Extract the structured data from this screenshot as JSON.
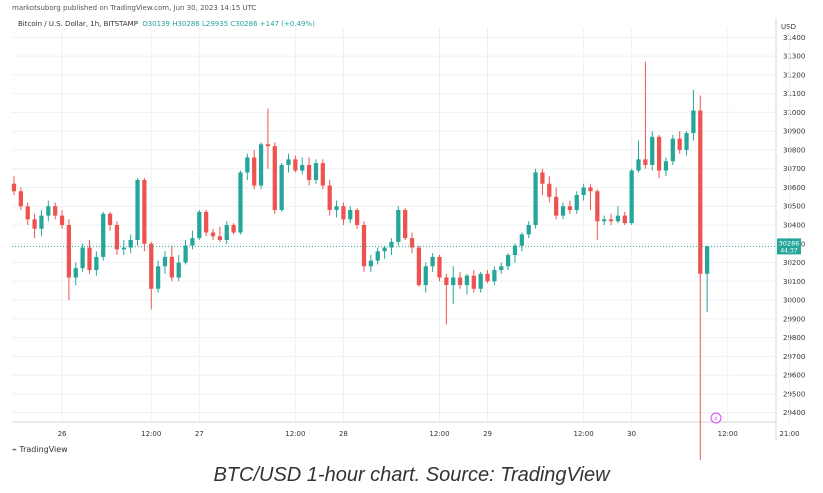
{
  "header": {
    "published": "markotsuborg published on TradingView.com, Jun 30, 2023 14:15 UTC",
    "symbol": "Bitcoin / U.S. Dollar, 1h, BITSTAMP",
    "open": "O30139",
    "high": "H30286",
    "low": "L29935",
    "close": "C30286",
    "change": "+147 (+0.49%)"
  },
  "currency_label": "USD",
  "brand": "TradingView",
  "caption": "BTC/USD 1-hour chart. Source: TradingView",
  "colors": {
    "up": "#26a69a",
    "down": "#ef5350",
    "grid": "#eef0f3",
    "axis_text": "#333333",
    "price_line": "#26a69a"
  },
  "chart_data": {
    "type": "candlestick",
    "title": "Bitcoin / U.S. Dollar, 1h, BITSTAMP",
    "y_unit": "USD",
    "ylim": [
      29350,
      31450
    ],
    "yticks": [
      29400,
      29500,
      29600,
      29700,
      29800,
      29900,
      30000,
      30100,
      30200,
      30300,
      30400,
      30500,
      30600,
      30700,
      30800,
      30900,
      31000,
      31100,
      31200,
      31300,
      31400
    ],
    "x_tick_labels": [
      "26",
      "12:00",
      "27",
      "12:00",
      "28",
      "12:00",
      "29",
      "12:00",
      "30",
      "12:00",
      "21:00"
    ],
    "last_price": "30286",
    "countdown": "44:37",
    "candles": [
      {
        "o": 30620,
        "h": 30660,
        "l": 30560,
        "c": 30580
      },
      {
        "o": 30580,
        "h": 30600,
        "l": 30480,
        "c": 30500
      },
      {
        "o": 30500,
        "h": 30520,
        "l": 30400,
        "c": 30430
      },
      {
        "o": 30430,
        "h": 30460,
        "l": 30330,
        "c": 30380
      },
      {
        "o": 30380,
        "h": 30480,
        "l": 30340,
        "c": 30450
      },
      {
        "o": 30450,
        "h": 30530,
        "l": 30420,
        "c": 30500
      },
      {
        "o": 30500,
        "h": 30520,
        "l": 30430,
        "c": 30450
      },
      {
        "o": 30450,
        "h": 30480,
        "l": 30380,
        "c": 30400
      },
      {
        "o": 30400,
        "h": 30430,
        "l": 30000,
        "c": 30120
      },
      {
        "o": 30120,
        "h": 30200,
        "l": 30080,
        "c": 30170
      },
      {
        "o": 30170,
        "h": 30300,
        "l": 30150,
        "c": 30280
      },
      {
        "o": 30280,
        "h": 30320,
        "l": 30140,
        "c": 30160
      },
      {
        "o": 30160,
        "h": 30260,
        "l": 30130,
        "c": 30230
      },
      {
        "o": 30230,
        "h": 30470,
        "l": 30210,
        "c": 30460
      },
      {
        "o": 30460,
        "h": 30470,
        "l": 30370,
        "c": 30400
      },
      {
        "o": 30400,
        "h": 30420,
        "l": 30240,
        "c": 30270
      },
      {
        "o": 30270,
        "h": 30320,
        "l": 30240,
        "c": 30280
      },
      {
        "o": 30280,
        "h": 30350,
        "l": 30250,
        "c": 30320
      },
      {
        "o": 30320,
        "h": 30650,
        "l": 30290,
        "c": 30640
      },
      {
        "o": 30640,
        "h": 30650,
        "l": 30260,
        "c": 30300
      },
      {
        "o": 30300,
        "h": 30310,
        "l": 29950,
        "c": 30060
      },
      {
        "o": 30060,
        "h": 30210,
        "l": 30040,
        "c": 30180
      },
      {
        "o": 30180,
        "h": 30260,
        "l": 30140,
        "c": 30230
      },
      {
        "o": 30230,
        "h": 30290,
        "l": 30100,
        "c": 30120
      },
      {
        "o": 30120,
        "h": 30240,
        "l": 30100,
        "c": 30200
      },
      {
        "o": 30200,
        "h": 30320,
        "l": 30190,
        "c": 30290
      },
      {
        "o": 30290,
        "h": 30370,
        "l": 30270,
        "c": 30330
      },
      {
        "o": 30330,
        "h": 30480,
        "l": 30320,
        "c": 30470
      },
      {
        "o": 30470,
        "h": 30480,
        "l": 30340,
        "c": 30360
      },
      {
        "o": 30360,
        "h": 30380,
        "l": 30320,
        "c": 30340
      },
      {
        "o": 30340,
        "h": 30390,
        "l": 30310,
        "c": 30320
      },
      {
        "o": 30320,
        "h": 30420,
        "l": 30300,
        "c": 30400
      },
      {
        "o": 30400,
        "h": 30410,
        "l": 30350,
        "c": 30360
      },
      {
        "o": 30360,
        "h": 30690,
        "l": 30350,
        "c": 30680
      },
      {
        "o": 30680,
        "h": 30780,
        "l": 30640,
        "c": 30760
      },
      {
        "o": 30760,
        "h": 30800,
        "l": 30590,
        "c": 30610
      },
      {
        "o": 30610,
        "h": 30840,
        "l": 30590,
        "c": 30830
      },
      {
        "o": 30830,
        "h": 31020,
        "l": 30700,
        "c": 30820
      },
      {
        "o": 30820,
        "h": 30840,
        "l": 30460,
        "c": 30480
      },
      {
        "o": 30480,
        "h": 30730,
        "l": 30470,
        "c": 30720
      },
      {
        "o": 30720,
        "h": 30780,
        "l": 30680,
        "c": 30750
      },
      {
        "o": 30750,
        "h": 30770,
        "l": 30680,
        "c": 30690
      },
      {
        "o": 30690,
        "h": 30760,
        "l": 30670,
        "c": 30720
      },
      {
        "o": 30720,
        "h": 30760,
        "l": 30610,
        "c": 30640
      },
      {
        "o": 30640,
        "h": 30750,
        "l": 30620,
        "c": 30730
      },
      {
        "o": 30730,
        "h": 30750,
        "l": 30590,
        "c": 30610
      },
      {
        "o": 30610,
        "h": 30640,
        "l": 30450,
        "c": 30480
      },
      {
        "o": 30480,
        "h": 30530,
        "l": 30440,
        "c": 30500
      },
      {
        "o": 30500,
        "h": 30520,
        "l": 30400,
        "c": 30430
      },
      {
        "o": 30430,
        "h": 30500,
        "l": 30410,
        "c": 30480
      },
      {
        "o": 30480,
        "h": 30490,
        "l": 30380,
        "c": 30400
      },
      {
        "o": 30400,
        "h": 30420,
        "l": 30150,
        "c": 30180
      },
      {
        "o": 30180,
        "h": 30240,
        "l": 30150,
        "c": 30210
      },
      {
        "o": 30210,
        "h": 30280,
        "l": 30190,
        "c": 30260
      },
      {
        "o": 30260,
        "h": 30290,
        "l": 30220,
        "c": 30280
      },
      {
        "o": 30280,
        "h": 30330,
        "l": 30240,
        "c": 30310
      },
      {
        "o": 30310,
        "h": 30500,
        "l": 30290,
        "c": 30480
      },
      {
        "o": 30480,
        "h": 30490,
        "l": 30320,
        "c": 30330
      },
      {
        "o": 30330,
        "h": 30360,
        "l": 30250,
        "c": 30280
      },
      {
        "o": 30280,
        "h": 30290,
        "l": 30070,
        "c": 30080
      },
      {
        "o": 30080,
        "h": 30200,
        "l": 30040,
        "c": 30180
      },
      {
        "o": 30180,
        "h": 30250,
        "l": 30150,
        "c": 30230
      },
      {
        "o": 30230,
        "h": 30240,
        "l": 30100,
        "c": 30120
      },
      {
        "o": 30120,
        "h": 30140,
        "l": 29870,
        "c": 30080
      },
      {
        "o": 30080,
        "h": 30180,
        "l": 29980,
        "c": 30120
      },
      {
        "o": 30120,
        "h": 30150,
        "l": 30060,
        "c": 30080
      },
      {
        "o": 30080,
        "h": 30140,
        "l": 30030,
        "c": 30130
      },
      {
        "o": 30130,
        "h": 30160,
        "l": 30040,
        "c": 30060
      },
      {
        "o": 30060,
        "h": 30150,
        "l": 30040,
        "c": 30140
      },
      {
        "o": 30140,
        "h": 30160,
        "l": 30090,
        "c": 30100
      },
      {
        "o": 30100,
        "h": 30180,
        "l": 30080,
        "c": 30160
      },
      {
        "o": 30160,
        "h": 30200,
        "l": 30140,
        "c": 30180
      },
      {
        "o": 30180,
        "h": 30250,
        "l": 30160,
        "c": 30240
      },
      {
        "o": 30240,
        "h": 30300,
        "l": 30200,
        "c": 30290
      },
      {
        "o": 30290,
        "h": 30360,
        "l": 30260,
        "c": 30350
      },
      {
        "o": 30350,
        "h": 30420,
        "l": 30330,
        "c": 30400
      },
      {
        "o": 30400,
        "h": 30700,
        "l": 30380,
        "c": 30680
      },
      {
        "o": 30680,
        "h": 30700,
        "l": 30560,
        "c": 30620
      },
      {
        "o": 30620,
        "h": 30660,
        "l": 30520,
        "c": 30550
      },
      {
        "o": 30550,
        "h": 30600,
        "l": 30430,
        "c": 30450
      },
      {
        "o": 30450,
        "h": 30520,
        "l": 30430,
        "c": 30500
      },
      {
        "o": 30500,
        "h": 30530,
        "l": 30460,
        "c": 30480
      },
      {
        "o": 30480,
        "h": 30580,
        "l": 30460,
        "c": 30560
      },
      {
        "o": 30560,
        "h": 30620,
        "l": 30530,
        "c": 30600
      },
      {
        "o": 30600,
        "h": 30620,
        "l": 30480,
        "c": 30580
      },
      {
        "o": 30580,
        "h": 30590,
        "l": 30320,
        "c": 30420
      },
      {
        "o": 30420,
        "h": 30450,
        "l": 30400,
        "c": 30430
      },
      {
        "o": 30430,
        "h": 30460,
        "l": 30400,
        "c": 30420
      },
      {
        "o": 30420,
        "h": 30500,
        "l": 30410,
        "c": 30450
      },
      {
        "o": 30450,
        "h": 30470,
        "l": 30400,
        "c": 30410
      },
      {
        "o": 30410,
        "h": 30700,
        "l": 30400,
        "c": 30690
      },
      {
        "o": 30690,
        "h": 30850,
        "l": 30680,
        "c": 30750
      },
      {
        "o": 30750,
        "h": 31270,
        "l": 30700,
        "c": 30720
      },
      {
        "o": 30720,
        "h": 30900,
        "l": 30690,
        "c": 30870
      },
      {
        "o": 30870,
        "h": 30880,
        "l": 30650,
        "c": 30690
      },
      {
        "o": 30690,
        "h": 30760,
        "l": 30660,
        "c": 30740
      },
      {
        "o": 30740,
        "h": 30880,
        "l": 30720,
        "c": 30860
      },
      {
        "o": 30860,
        "h": 30900,
        "l": 30780,
        "c": 30800
      },
      {
        "o": 30800,
        "h": 30900,
        "l": 30770,
        "c": 30890
      },
      {
        "o": 30890,
        "h": 31120,
        "l": 30850,
        "c": 31010
      },
      {
        "o": 31010,
        "h": 31090,
        "l": 29100,
        "c": 30140
      },
      {
        "o": 30140,
        "h": 30290,
        "l": 29935,
        "c": 30286
      }
    ]
  }
}
